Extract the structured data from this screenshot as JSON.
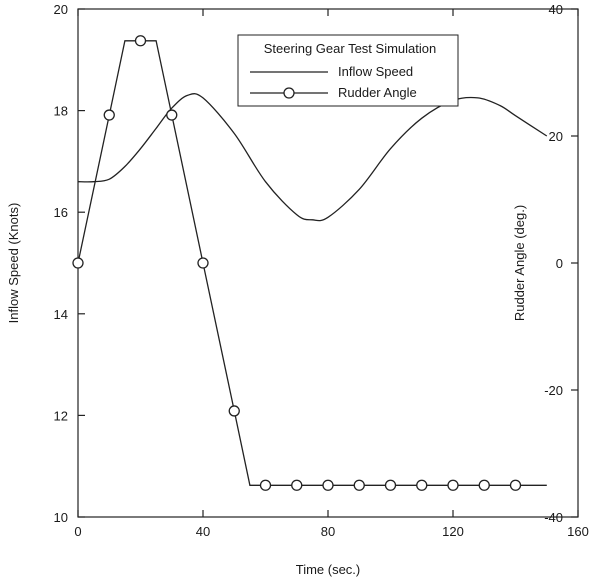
{
  "chart_data": {
    "type": "line",
    "legend": {
      "title": "Steering Gear Test Simulation",
      "position": "top-right",
      "entries": [
        "Inflow Speed",
        "Rudder Angle"
      ]
    },
    "xlabel": "Time (sec.)",
    "ylabel_left": "Inflow Speed (Knots)",
    "ylabel_right": "Rudder Angle (deg.)",
    "xlim": [
      0,
      160
    ],
    "ylim_left": [
      10,
      20
    ],
    "ylim_right": [
      -40,
      40
    ],
    "x_ticks": [
      "0",
      "40",
      "80",
      "120",
      "160"
    ],
    "y_left_ticks": [
      "10",
      "12",
      "14",
      "16",
      "18",
      "20"
    ],
    "y_right_ticks": [
      "-40",
      "-20",
      "0",
      "20",
      "40"
    ],
    "grid": false,
    "series": [
      {
        "name": "Inflow Speed",
        "axis": "left",
        "marker": "none",
        "x": [
          0,
          5,
          10,
          15,
          20,
          25,
          30,
          35,
          40,
          50,
          60,
          70,
          75,
          80,
          90,
          100,
          110,
          120,
          128,
          135,
          140,
          150
        ],
        "y": [
          16.6,
          16.6,
          16.65,
          16.9,
          17.25,
          17.65,
          18.05,
          18.3,
          18.25,
          17.55,
          16.6,
          15.95,
          15.85,
          15.9,
          16.45,
          17.25,
          17.85,
          18.2,
          18.25,
          18.1,
          17.9,
          17.5
        ]
      },
      {
        "name": "Rudder Angle",
        "axis": "right",
        "marker": "circle",
        "x": [
          0,
          10,
          15,
          25,
          30,
          40,
          50,
          55,
          60,
          70,
          80,
          90,
          100,
          110,
          120,
          130,
          140,
          150
        ],
        "y": [
          0,
          23.3,
          35,
          35,
          23.3,
          0,
          -23.3,
          -35,
          -35,
          -35,
          -35,
          -35,
          -35,
          -35,
          -35,
          -35,
          -35,
          -35
        ],
        "marker_x": [
          0,
          10,
          20,
          30,
          40,
          50,
          60,
          70,
          80,
          90,
          100,
          110,
          120,
          130,
          140
        ],
        "marker_y": [
          0,
          23.3,
          35,
          23.3,
          0,
          -23.3,
          -35,
          -35,
          -35,
          -35,
          -35,
          -35,
          -35,
          -35,
          -35
        ]
      }
    ]
  }
}
